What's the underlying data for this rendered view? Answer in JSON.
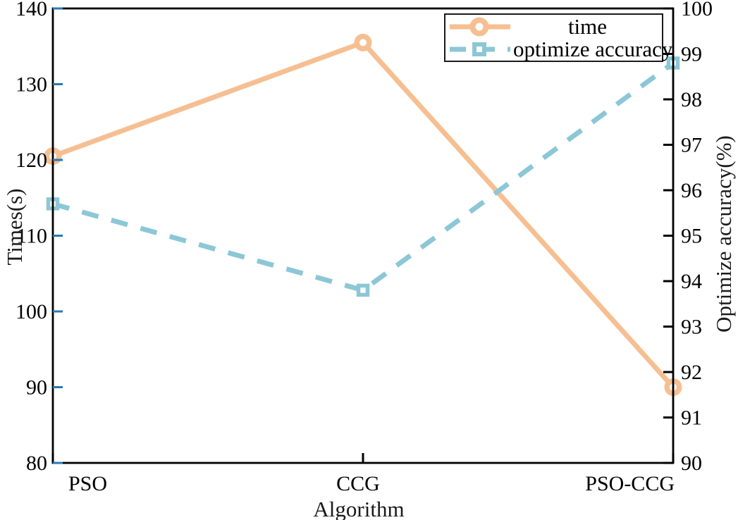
{
  "chart_data": {
    "type": "line",
    "title": "",
    "categories": [
      "PSO",
      "CCG",
      "PSO-CCG"
    ],
    "xlabel": "Algorithm",
    "left_axis": {
      "label": "Times(s)",
      "min": 80,
      "max": 140,
      "ticks": [
        80,
        90,
        100,
        110,
        120,
        130,
        140
      ],
      "tick_color": "#2878b8"
    },
    "right_axis": {
      "label": "Optimize accuracy(%)",
      "min": 90,
      "max": 100,
      "ticks": [
        90,
        91,
        92,
        93,
        94,
        95,
        96,
        97,
        98,
        99,
        100
      ],
      "tick_color": "#000000"
    },
    "series": [
      {
        "name": "time",
        "axis": "left",
        "line_style": "solid",
        "marker": "circle",
        "color": "#f6bf92",
        "values": [
          120.5,
          135.5,
          90
        ]
      },
      {
        "name": "optimize accuracy",
        "axis": "right",
        "line_style": "dashed",
        "marker": "square",
        "color": "#8cc7d6",
        "values": [
          95.7,
          93.8,
          98.8
        ]
      }
    ],
    "legend": {
      "position": "top-right",
      "entries": [
        "time",
        "optimize accuracy"
      ]
    },
    "grid": false,
    "plot_border_color": "#000000",
    "background": "#ffffff"
  }
}
